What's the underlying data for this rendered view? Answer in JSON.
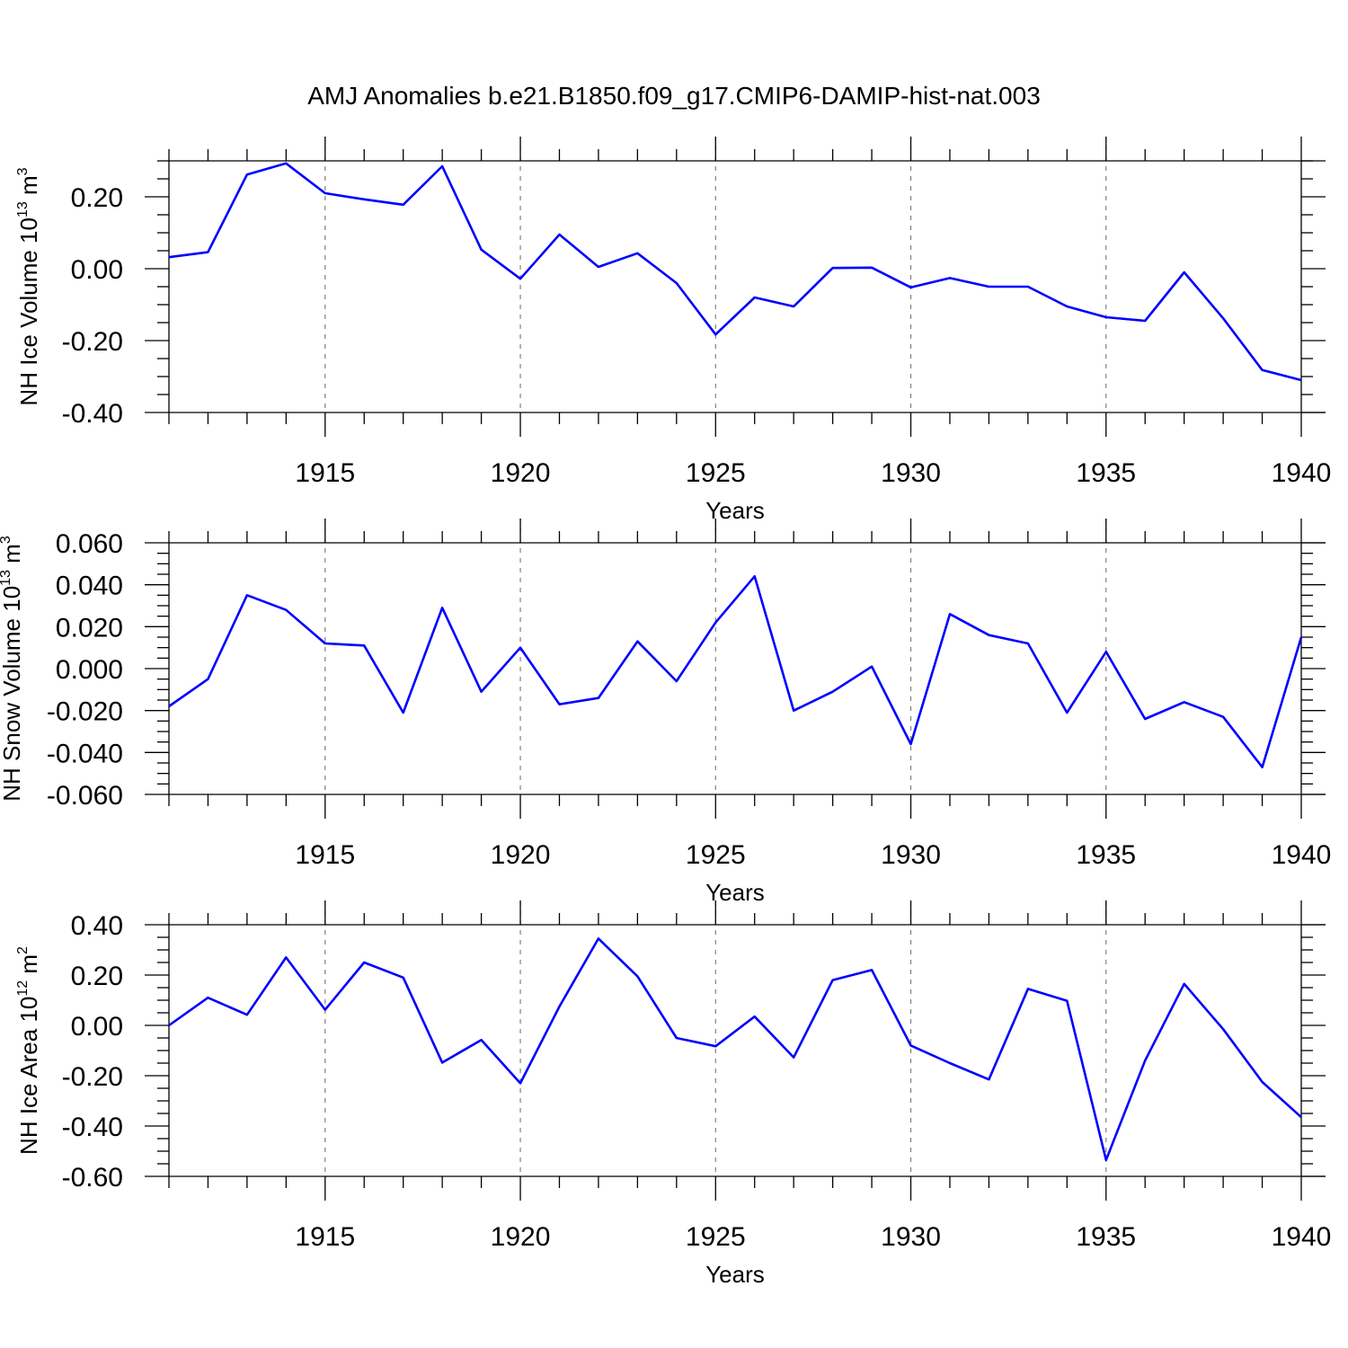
{
  "title": "AMJ Anomalies b.e21.B1850.f09_g17.CMIP6-DAMIP-hist-nat.003",
  "colors": {
    "series": "#0000ff",
    "axes": "#000000",
    "grid": "#808080"
  },
  "chart_data": [
    {
      "type": "line",
      "ylabel": "NH Ice Volume 10",
      "ylabel_sup": "13",
      "ylabel_unit": "m",
      "ylabel_unit_sup": "3",
      "xlabel": "Years",
      "xlim": [
        1911,
        1940
      ],
      "ylim": [
        -0.4,
        0.3
      ],
      "xticks": [
        "1915",
        "1920",
        "1925",
        "1930",
        "1935",
        "1940"
      ],
      "yticks": [
        "0.20",
        "0.00",
        "-0.20",
        "-0.40"
      ],
      "grid": "vertical dashed at labeled years",
      "x": [
        1911,
        1912,
        1913,
        1914,
        1915,
        1916,
        1917,
        1918,
        1919,
        1920,
        1921,
        1922,
        1923,
        1924,
        1925,
        1926,
        1927,
        1928,
        1929,
        1930,
        1931,
        1932,
        1933,
        1934,
        1935,
        1936,
        1937,
        1938,
        1939,
        1940
      ],
      "y": [
        0.032,
        0.046,
        0.262,
        0.293,
        0.21,
        0.193,
        0.178,
        0.285,
        0.053,
        -0.028,
        0.095,
        0.005,
        0.043,
        -0.04,
        -0.183,
        -0.08,
        -0.105,
        0.002,
        0.003,
        -0.052,
        -0.026,
        -0.05,
        -0.05,
        -0.105,
        -0.135,
        -0.145,
        -0.01,
        -0.138,
        -0.282,
        -0.31
      ]
    },
    {
      "type": "line",
      "ylabel": "NH Snow Volume 10",
      "ylabel_sup": "13",
      "ylabel_unit": "m",
      "ylabel_unit_sup": "3",
      "xlabel": "Years",
      "xlim": [
        1911,
        1940
      ],
      "ylim": [
        -0.06,
        0.06
      ],
      "xticks": [
        "1915",
        "1920",
        "1925",
        "1930",
        "1935",
        "1940"
      ],
      "yticks": [
        "0.060",
        "0.040",
        "0.020",
        "0.000",
        "-0.020",
        "-0.040",
        "-0.060"
      ],
      "grid": "vertical dashed at labeled years",
      "x": [
        1911,
        1912,
        1913,
        1914,
        1915,
        1916,
        1917,
        1918,
        1919,
        1920,
        1921,
        1922,
        1923,
        1924,
        1925,
        1926,
        1927,
        1928,
        1929,
        1930,
        1931,
        1932,
        1933,
        1934,
        1935,
        1936,
        1937,
        1938,
        1939,
        1940
      ],
      "y": [
        -0.018,
        -0.005,
        0.035,
        0.028,
        0.012,
        0.011,
        -0.021,
        0.029,
        -0.011,
        0.01,
        -0.017,
        -0.014,
        0.013,
        -0.006,
        0.022,
        0.044,
        -0.02,
        -0.011,
        0.001,
        -0.036,
        0.026,
        0.016,
        0.012,
        -0.021,
        0.008,
        -0.024,
        -0.016,
        -0.023,
        -0.047,
        0.015
      ]
    },
    {
      "type": "line",
      "ylabel": "NH Ice Area 10",
      "ylabel_sup": "12",
      "ylabel_unit": "m",
      "ylabel_unit_sup": "2",
      "xlabel": "Years",
      "xlim": [
        1911,
        1940
      ],
      "ylim": [
        -0.6,
        0.4
      ],
      "xticks": [
        "1915",
        "1920",
        "1925",
        "1930",
        "1935",
        "1940"
      ],
      "yticks": [
        "0.40",
        "0.20",
        "0.00",
        "-0.20",
        "-0.40",
        "-0.60"
      ],
      "grid": "vertical dashed at labeled years",
      "x": [
        1911,
        1912,
        1913,
        1914,
        1915,
        1916,
        1917,
        1918,
        1919,
        1920,
        1921,
        1922,
        1923,
        1924,
        1925,
        1926,
        1927,
        1928,
        1929,
        1930,
        1931,
        1932,
        1933,
        1934,
        1935,
        1936,
        1937,
        1938,
        1939,
        1940
      ],
      "y": [
        0.0,
        0.11,
        0.042,
        0.27,
        0.062,
        0.25,
        0.19,
        -0.148,
        -0.058,
        -0.23,
        0.075,
        0.345,
        0.195,
        -0.05,
        -0.083,
        0.035,
        -0.127,
        0.18,
        0.22,
        -0.08,
        -0.15,
        -0.215,
        0.145,
        0.098,
        -0.535,
        -0.14,
        0.165,
        -0.015,
        -0.225,
        -0.365
      ]
    }
  ]
}
